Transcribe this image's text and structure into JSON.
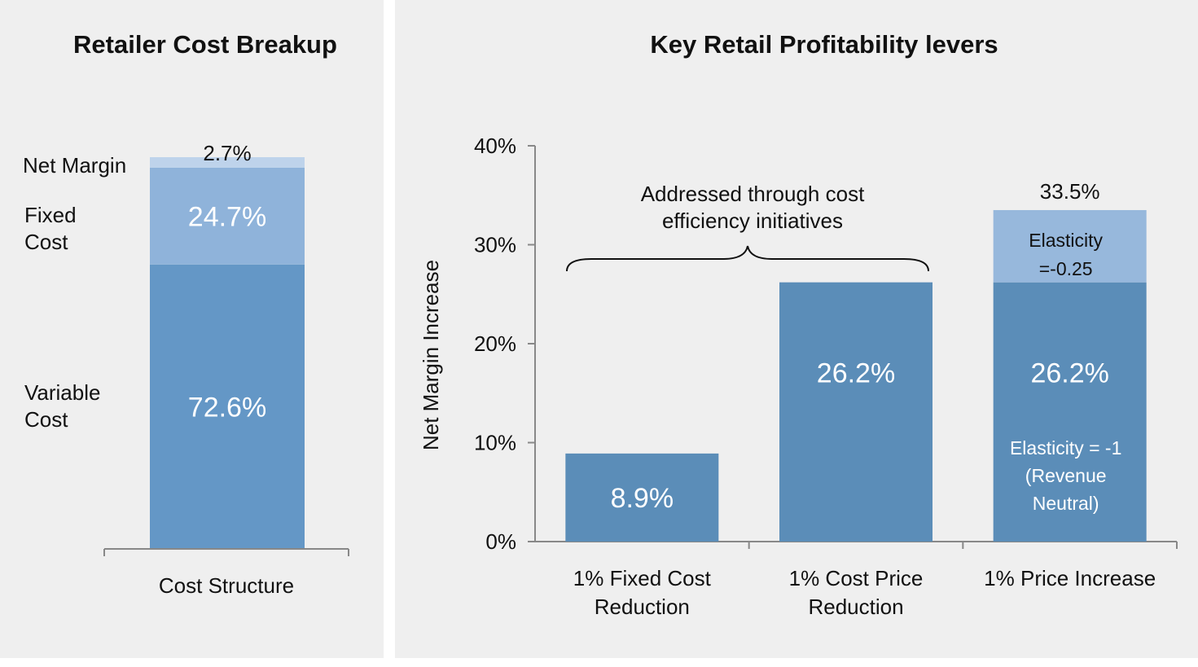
{
  "colors": {
    "variable": "#6497c6",
    "fixed": "#8fb3da",
    "margin": "#bed3eb",
    "bar": "#5b8db8",
    "bar_top": "#97b8dc",
    "panel": "#efefef",
    "axis": "#888888"
  },
  "chart_data": [
    {
      "type": "bar",
      "stacked": true,
      "title": "Retailer Cost Breakup",
      "categories": [
        "Cost Structure"
      ],
      "series": [
        {
          "name": "Variable Cost",
          "label": "72.6%",
          "values": [
            72.6
          ],
          "legend": [
            "Variable",
            "Cost"
          ]
        },
        {
          "name": "Fixed Cost",
          "label": "24.7%",
          "values": [
            24.7
          ],
          "legend": [
            "Fixed",
            "Cost"
          ]
        },
        {
          "name": "Net Margin",
          "label": "2.7%",
          "values": [
            2.7
          ],
          "legend": [
            "Net Margin"
          ]
        }
      ],
      "ylim": [
        0,
        100
      ]
    },
    {
      "type": "bar",
      "title": "Key Retail Profitability levers",
      "ylabel": "Net Margin Increase",
      "ylim": [
        0,
        40
      ],
      "yticks": [
        "0%",
        "10%",
        "20%",
        "30%",
        "40%"
      ],
      "categories": [
        {
          "lines": [
            "1% Fixed Cost",
            "Reduction"
          ]
        },
        {
          "lines": [
            "1% Cost Price",
            "Reduction"
          ]
        },
        {
          "lines": [
            "1% Price Increase"
          ]
        }
      ],
      "bars": [
        {
          "base": 8.9,
          "label": "8.9%"
        },
        {
          "base": 26.2,
          "label": "26.2%"
        },
        {
          "base": 26.2,
          "label": "26.2%",
          "top": 33.5,
          "total_label": "33.5%",
          "top_label": [
            "Elasticity",
            "=-0.25"
          ],
          "base_note": [
            "Elasticity = -1",
            "(Revenue",
            "Neutral)"
          ]
        }
      ],
      "brace_text": [
        "Addressed through cost",
        "efficiency initiatives"
      ]
    }
  ]
}
